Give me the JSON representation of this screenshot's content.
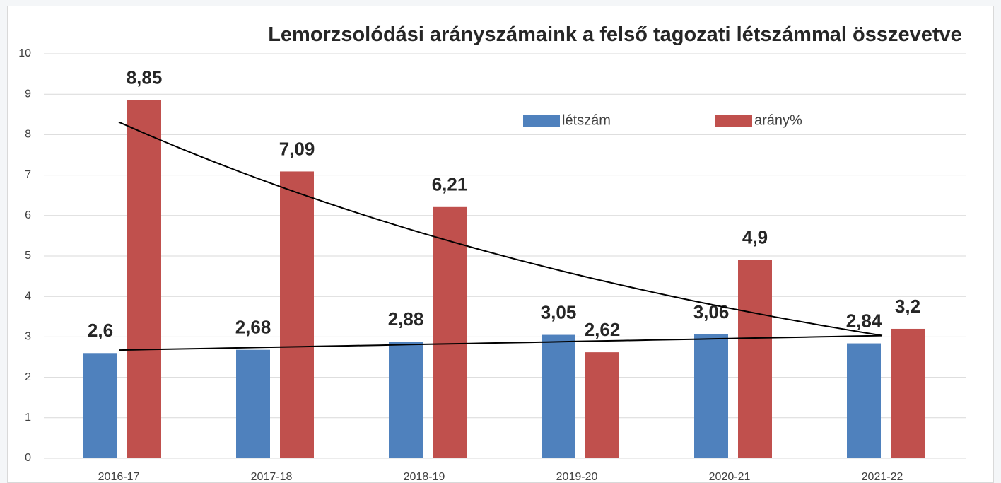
{
  "chart_data": {
    "type": "bar",
    "title": "Lemorzsolódási arányszámaink a felső tagozati létszámmal összevetve",
    "categories": [
      "2016-17",
      "2017-18",
      "2018-19",
      "2019-20",
      "2020-21",
      "2021-22"
    ],
    "series": [
      {
        "name": "létszám",
        "color": "#4f81bd",
        "trendline": "linear",
        "values": [
          2.6,
          2.68,
          2.88,
          3.05,
          3.06,
          2.84
        ],
        "value_labels": [
          "2,6",
          "2,68",
          "2,88",
          "3,05",
          "3,06",
          "2,84"
        ]
      },
      {
        "name": "arány%",
        "color": "#c0504d",
        "trendline": "exponential",
        "values": [
          8.85,
          7.09,
          6.21,
          2.62,
          4.9,
          3.2
        ],
        "value_labels": [
          "8,85",
          "7,09",
          "6,21",
          "2,62",
          "4,9",
          "3,2"
        ]
      }
    ],
    "ylim": [
      0,
      10
    ],
    "yticks": [
      0,
      1,
      2,
      3,
      4,
      5,
      6,
      7,
      8,
      9,
      10
    ],
    "grid": true
  }
}
